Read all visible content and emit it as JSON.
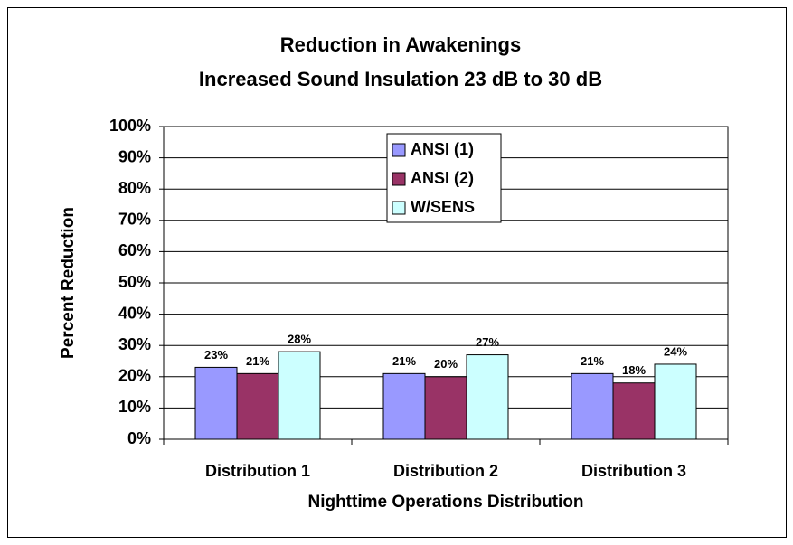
{
  "chart_data": {
    "type": "bar",
    "title": "Reduction in Awakenings",
    "subtitle": "Increased Sound Insulation 23 dB to 30 dB",
    "x_label": "Nighttime Operations Distribution",
    "y_label": "Percent Reduction",
    "categories": [
      "Distribution 1",
      "Distribution 2",
      "Distribution 3"
    ],
    "series": [
      {
        "name": "ANSI (1)",
        "color": "#9999ff",
        "values": [
          23,
          21,
          21
        ],
        "value_labels": [
          "23%",
          "21%",
          "21%"
        ]
      },
      {
        "name": "ANSI (2)",
        "color": "#993366",
        "values": [
          21,
          20,
          18
        ],
        "value_labels": [
          "21%",
          "20%",
          "18%"
        ]
      },
      {
        "name": "W/SENS",
        "color": "#ccffff",
        "values": [
          28,
          27,
          24
        ],
        "value_labels": [
          "28%",
          "27%",
          "24%"
        ]
      }
    ],
    "ylim": [
      0,
      100
    ],
    "yticks": [
      {
        "value": 0,
        "label": "0%"
      },
      {
        "value": 10,
        "label": "10%"
      },
      {
        "value": 20,
        "label": "20%"
      },
      {
        "value": 30,
        "label": "30%"
      },
      {
        "value": 40,
        "label": "40%"
      },
      {
        "value": 50,
        "label": "50%"
      },
      {
        "value": 60,
        "label": "60%"
      },
      {
        "value": 70,
        "label": "70%"
      },
      {
        "value": 80,
        "label": "80%"
      },
      {
        "value": 90,
        "label": "90%"
      },
      {
        "value": 100,
        "label": "100%"
      }
    ],
    "grid": true
  }
}
